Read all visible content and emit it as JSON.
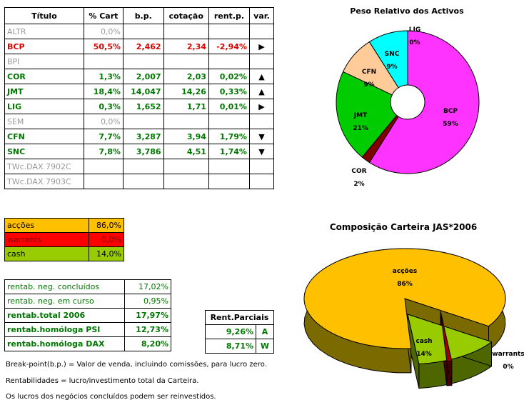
{
  "table": {
    "headers": [
      "Título",
      "% Cart",
      "b.p.",
      "cotação",
      "rent.p.",
      "var."
    ],
    "rows": [
      {
        "name": "ALTR",
        "pct": "0,0%",
        "bp": "",
        "cot": "",
        "rent": "",
        "var": "",
        "style": "gray"
      },
      {
        "name": "BCP",
        "pct": "50,5%",
        "bp": "2,462",
        "cot": "2,34",
        "rent": "-2,94%",
        "var": "right",
        "style": "red"
      },
      {
        "name": "BPI",
        "pct": "",
        "bp": "",
        "cot": "",
        "rent": "",
        "var": "",
        "style": "gray"
      },
      {
        "name": "COR",
        "pct": "1,3%",
        "bp": "2,007",
        "cot": "2,03",
        "rent": "0,02%",
        "var": "up",
        "style": "green"
      },
      {
        "name": "JMT",
        "pct": "18,4%",
        "bp": "14,047",
        "cot": "14,26",
        "rent": "0,33%",
        "var": "up",
        "style": "green"
      },
      {
        "name": "LIG",
        "pct": "0,3%",
        "bp": "1,652",
        "cot": "1,71",
        "rent": "0,01%",
        "var": "right",
        "style": "green"
      },
      {
        "name": "SEM",
        "pct": "0,0%",
        "bp": "",
        "cot": "",
        "rent": "",
        "var": "",
        "style": "gray"
      },
      {
        "name": "CFN",
        "pct": "7,7%",
        "bp": "3,287",
        "cot": "3,94",
        "rent": "1,79%",
        "var": "down",
        "style": "green"
      },
      {
        "name": "SNC",
        "pct": "7,8%",
        "bp": "3,786",
        "cot": "4,51",
        "rent": "1,74%",
        "var": "down",
        "style": "green"
      },
      {
        "name": "TWc.DAX 7902C",
        "pct": "",
        "bp": "",
        "cot": "",
        "rent": "",
        "var": "",
        "style": "gray"
      },
      {
        "name": "TWc.DAX 7903C",
        "pct": "",
        "bp": "",
        "cot": "",
        "rent": "",
        "var": "",
        "style": "gray"
      }
    ]
  },
  "allocation": [
    {
      "label": "acções",
      "value": "86,0%",
      "bg": "#ffc000",
      "fg": "#000000"
    },
    {
      "label": "warrants",
      "value": "0,0%",
      "bg": "#ff0000",
      "fg": "#800000"
    },
    {
      "label": "cash",
      "value": "14,0%",
      "bg": "#99cc00",
      "fg": "#000000"
    }
  ],
  "returns": [
    {
      "label": "rentab. neg. concluídos",
      "value": "17,02%",
      "bold": false
    },
    {
      "label": "rentab. neg. em curso",
      "value": "0,95%",
      "bold": false
    },
    {
      "label": "rentab.total 2006",
      "value": "17,97%",
      "bold": true
    },
    {
      "label": "rentab.homóloga PSI",
      "value": "12,73%",
      "bold": true
    },
    {
      "label": "rentab.homóloga DAX",
      "value": "8,20%",
      "bold": true
    }
  ],
  "partial": {
    "header": "Rent.Parciais",
    "rows": [
      {
        "value": "9,26%",
        "letter": "A"
      },
      {
        "value": "8,71%",
        "letter": "W"
      }
    ]
  },
  "notes": [
    "Break-point(b.p.) = Valor de venda, incluindo comissões, para lucro zero.",
    "Rentabilidades = lucro/investimento total da Carteira.",
    "Os lucros dos negócios concluídos podem ser reinvestidos."
  ],
  "chart_data": [
    {
      "type": "pie",
      "title": "Peso Relativo dos Activos",
      "slices": [
        {
          "label": "BCP",
          "value": 59,
          "display": "59%",
          "color": "#ff33ff"
        },
        {
          "label": "COR",
          "value": 2,
          "display": "2%",
          "color": "#800000"
        },
        {
          "label": "JMT",
          "value": 21,
          "display": "21%",
          "color": "#00cc00"
        },
        {
          "label": "CFN",
          "value": 9,
          "display": "9%",
          "color": "#ffcc99"
        },
        {
          "label": "SNC",
          "value": 9,
          "display": "9%",
          "color": "#00ffff"
        },
        {
          "label": "LIG",
          "value": 0,
          "display": "0%",
          "color": "#ffff00"
        }
      ],
      "style": "doughnut"
    },
    {
      "type": "pie",
      "title": "Composição Carteira JAS*2006",
      "slices": [
        {
          "label": "acções",
          "value": 86,
          "display": "86%",
          "color": "#ffc000"
        },
        {
          "label": "cash",
          "value": 14,
          "display": "14%",
          "color": "#99cc00"
        },
        {
          "label": "warrants",
          "value": 0,
          "display": "0%",
          "color": "#990000"
        }
      ],
      "style": "3d-exploded"
    }
  ]
}
